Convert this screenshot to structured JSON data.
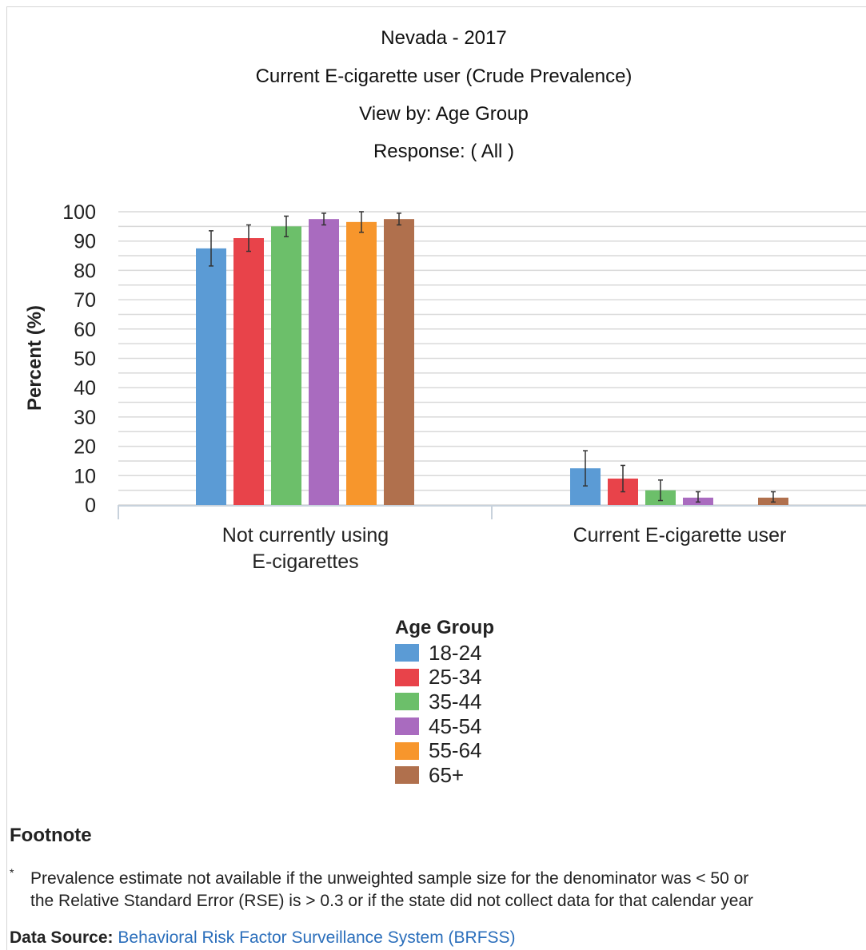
{
  "titles": {
    "line1": "Nevada - 2017",
    "line2": "Current E-cigarette user (Crude Prevalence)",
    "line3": "View by: Age Group",
    "line4": "Response: ( All )"
  },
  "chart_data": {
    "type": "bar",
    "categories": [
      [
        "Not currently using",
        "E-cigarettes"
      ],
      [
        "Current E-cigarette user"
      ]
    ],
    "ylabel": "Percent (%)",
    "ylim": [
      0,
      100
    ],
    "yticks": [
      0,
      10,
      20,
      30,
      40,
      50,
      60,
      70,
      80,
      90,
      100
    ],
    "grid": true,
    "legend_title": "Age Group",
    "legend_position": "bottom",
    "series": [
      {
        "name": "18-24",
        "color": "#5b9bd5",
        "values": [
          87.5,
          12.5
        ],
        "ci_low": [
          81.5,
          6.5
        ],
        "ci_high": [
          93.5,
          18.5
        ]
      },
      {
        "name": "25-34",
        "color": "#e8434a",
        "values": [
          91.0,
          9.0
        ],
        "ci_low": [
          86.5,
          4.5
        ],
        "ci_high": [
          95.5,
          13.5
        ]
      },
      {
        "name": "35-44",
        "color": "#6cbf6a",
        "values": [
          95.0,
          5.0
        ],
        "ci_low": [
          91.5,
          1.5
        ],
        "ci_high": [
          98.5,
          8.5
        ]
      },
      {
        "name": "45-54",
        "color": "#a96bbf",
        "values": [
          97.5,
          2.5
        ],
        "ci_low": [
          95.5,
          1.0
        ],
        "ci_high": [
          99.5,
          4.5
        ]
      },
      {
        "name": "55-64",
        "color": "#f7962c",
        "values": [
          96.5,
          null
        ],
        "ci_low": [
          93.0,
          null
        ],
        "ci_high": [
          100.0,
          null
        ]
      },
      {
        "name": "65+",
        "color": "#b0704d",
        "values": [
          97.5,
          2.5
        ],
        "ci_low": [
          95.5,
          1.0
        ],
        "ci_high": [
          99.5,
          4.5
        ]
      }
    ]
  },
  "footnote": {
    "title": "Footnote",
    "marker": "*",
    "line1": "Prevalence estimate not available if the unweighted sample size for the denominator was < 50 or",
    "line2": "the Relative Standard Error (RSE) is > 0.3 or if the state did not collect data for that calendar year"
  },
  "data_source": {
    "label": "Data Source:",
    "link": "Behavioral Risk Factor Surveillance System (BRFSS)"
  }
}
